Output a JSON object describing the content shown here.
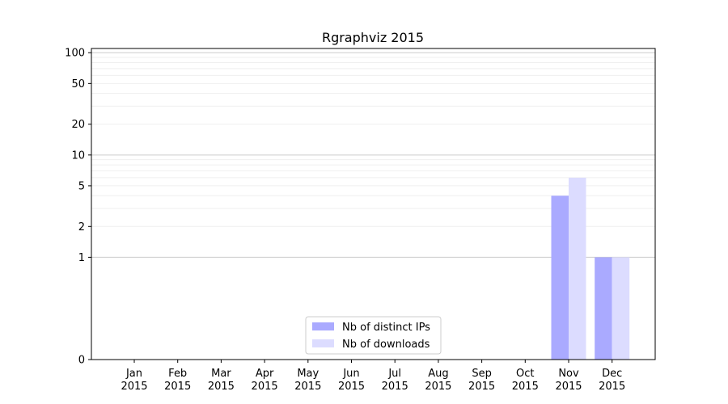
{
  "chart_data": {
    "type": "bar",
    "title": "Rgraphviz 2015",
    "xlabel": "",
    "ylabel": "",
    "y_scale": "symlog",
    "ylim": [
      0,
      110
    ],
    "y_ticks": [
      0,
      1,
      2,
      5,
      10,
      20,
      50,
      100
    ],
    "grid": true,
    "legend_position": "bottom-center",
    "categories": [
      {
        "month": "Jan",
        "year": "2015"
      },
      {
        "month": "Feb",
        "year": "2015"
      },
      {
        "month": "Mar",
        "year": "2015"
      },
      {
        "month": "Apr",
        "year": "2015"
      },
      {
        "month": "May",
        "year": "2015"
      },
      {
        "month": "Jun",
        "year": "2015"
      },
      {
        "month": "Jul",
        "year": "2015"
      },
      {
        "month": "Aug",
        "year": "2015"
      },
      {
        "month": "Sep",
        "year": "2015"
      },
      {
        "month": "Oct",
        "year": "2015"
      },
      {
        "month": "Nov",
        "year": "2015"
      },
      {
        "month": "Dec",
        "year": "2015"
      }
    ],
    "series": [
      {
        "name": "Nb of distinct IPs",
        "color": "#aaaaff",
        "values": [
          0,
          0,
          0,
          0,
          0,
          0,
          0,
          0,
          0,
          0,
          4,
          1
        ]
      },
      {
        "name": "Nb of downloads",
        "color": "#dcdcff",
        "values": [
          0,
          0,
          0,
          0,
          0,
          0,
          0,
          0,
          0,
          0,
          6,
          1
        ]
      }
    ]
  }
}
